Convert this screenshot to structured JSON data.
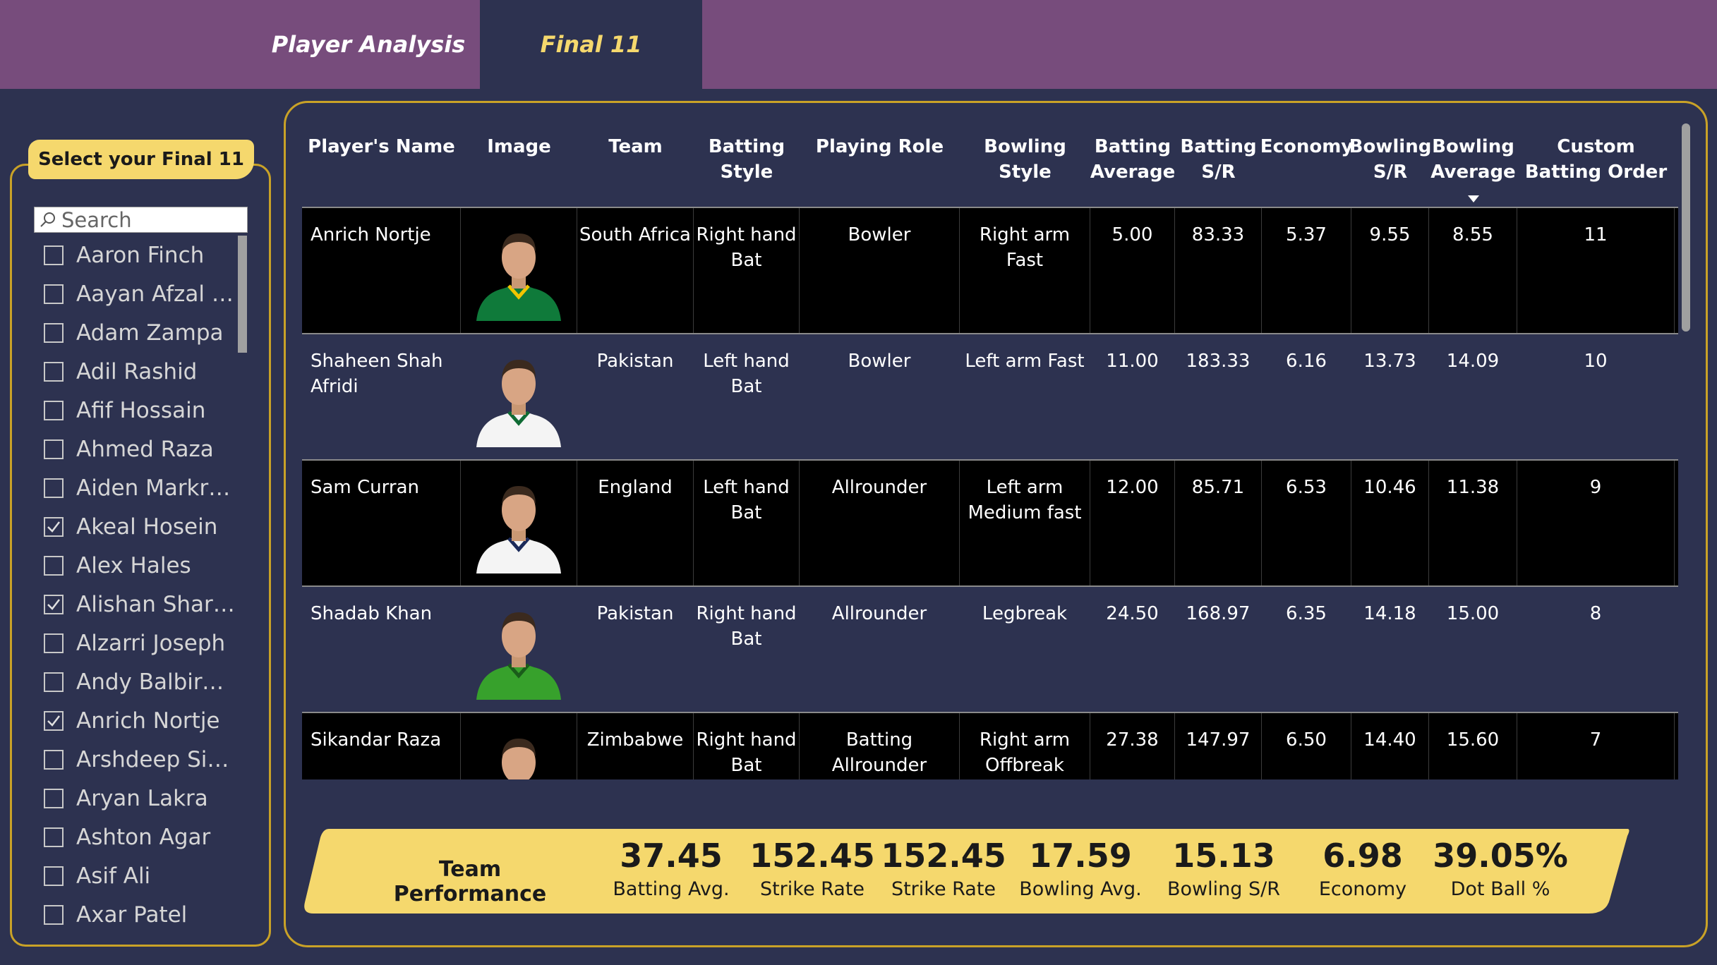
{
  "nav": {
    "tabs": [
      {
        "label": "Player Analysis",
        "active": false
      },
      {
        "label": "Final 11",
        "active": true
      }
    ]
  },
  "slicer": {
    "title": "Select your Final 11",
    "search_placeholder": "Search",
    "items": [
      {
        "label": "Aaron Finch",
        "checked": false
      },
      {
        "label": "Aayan Afzal Kh...",
        "checked": false
      },
      {
        "label": "Adam Zampa",
        "checked": false
      },
      {
        "label": "Adil Rashid",
        "checked": false
      },
      {
        "label": "Afif Hossain",
        "checked": false
      },
      {
        "label": "Ahmed Raza",
        "checked": false
      },
      {
        "label": "Aiden Markram",
        "checked": false
      },
      {
        "label": "Akeal Hosein",
        "checked": true
      },
      {
        "label": "Alex Hales",
        "checked": false
      },
      {
        "label": "Alishan Sharafu",
        "checked": true
      },
      {
        "label": "Alzarri Joseph",
        "checked": false
      },
      {
        "label": "Andy Balbirnie",
        "checked": false
      },
      {
        "label": "Anrich Nortje",
        "checked": true
      },
      {
        "label": "Arshdeep Singh",
        "checked": false
      },
      {
        "label": "Aryan Lakra",
        "checked": false
      },
      {
        "label": "Ashton Agar",
        "checked": false
      },
      {
        "label": "Asif Ali",
        "checked": false
      },
      {
        "label": "Axar Patel",
        "checked": false
      }
    ]
  },
  "table": {
    "columns": {
      "name": "Player's Name",
      "image": "Image",
      "team": "Team",
      "batting_style": "Batting Style",
      "role": "Playing Role",
      "bowling_style": "Bowling Style",
      "batting_avg": "Batting Average",
      "batting_sr": "Batting S/R",
      "economy": "Economy",
      "bowling_sr": "Bowling S/R",
      "bowling_avg": "Bowling Average",
      "order": "Custom Batting Order"
    },
    "rows": [
      {
        "name": "Anrich Nortje",
        "jersey": "#0f7a3a",
        "trim": "#f2c500",
        "team": "South Africa",
        "batting_style": "Right hand Bat",
        "role": "Bowler",
        "bowling_style": "Right arm Fast",
        "batting_avg": "5.00",
        "batting_sr": "83.33",
        "economy": "5.37",
        "bowling_sr": "9.55",
        "bowling_avg": "8.55",
        "order": "11"
      },
      {
        "name": "Shaheen Shah Afridi",
        "jersey": "#f4f4f4",
        "trim": "#0f6b34",
        "team": "Pakistan",
        "batting_style": "Left hand Bat",
        "role": "Bowler",
        "bowling_style": "Left arm Fast",
        "batting_avg": "11.00",
        "batting_sr": "183.33",
        "economy": "6.16",
        "bowling_sr": "13.73",
        "bowling_avg": "14.09",
        "order": "10"
      },
      {
        "name": "Sam Curran",
        "jersey": "#f4f4f4",
        "trim": "#1b2a5a",
        "team": "England",
        "batting_style": "Left hand Bat",
        "role": "Allrounder",
        "bowling_style": "Left arm Medium fast",
        "batting_avg": "12.00",
        "batting_sr": "85.71",
        "economy": "6.53",
        "bowling_sr": "10.46",
        "bowling_avg": "11.38",
        "order": "9"
      },
      {
        "name": "Shadab Khan",
        "jersey": "#37a12c",
        "trim": "#1a5c1a",
        "team": "Pakistan",
        "batting_style": "Right hand Bat",
        "role": "Allrounder",
        "bowling_style": "Legbreak",
        "batting_avg": "24.50",
        "batting_sr": "168.97",
        "economy": "6.35",
        "bowling_sr": "14.18",
        "bowling_avg": "15.00",
        "order": "8"
      },
      {
        "name": "Sikandar Raza",
        "jersey": "#c0392b",
        "trim": "#f1c40f",
        "team": "Zimbabwe",
        "batting_style": "Right hand Bat",
        "role": "Batting Allrounder",
        "bowling_style": "Right arm Offbreak",
        "batting_avg": "27.38",
        "batting_sr": "147.97",
        "economy": "6.50",
        "bowling_sr": "14.40",
        "bowling_avg": "15.60",
        "order": "7"
      }
    ]
  },
  "team_performance": {
    "title": "Team Performance",
    "kpis": [
      {
        "value": "37.45",
        "label": "Batting Avg."
      },
      {
        "value": "152.45",
        "label": "Strike Rate"
      },
      {
        "value": "152.45",
        "label": "Strike Rate"
      },
      {
        "value": "17.59",
        "label": "Bowling Avg."
      },
      {
        "value": "15.13",
        "label": "Bowling S/R"
      },
      {
        "value": "6.98",
        "label": "Economy"
      },
      {
        "value": "39.05%",
        "label": "Dot Ball %"
      }
    ]
  },
  "colors": {
    "background": "#2d3250",
    "nav": "#774c7c",
    "accent": "#f5d86d",
    "border": "#c9a227"
  }
}
